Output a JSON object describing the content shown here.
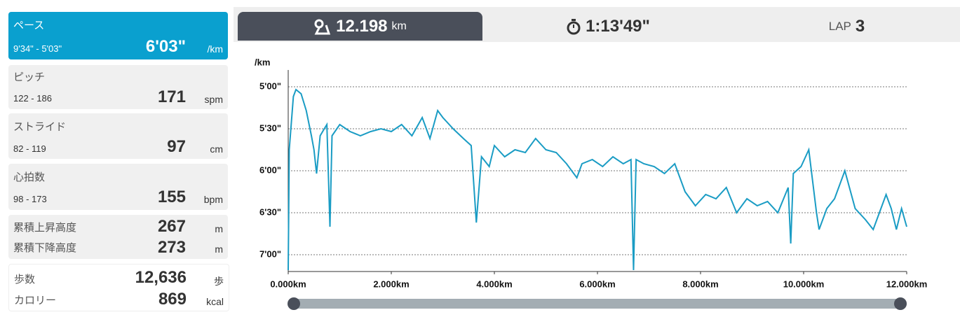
{
  "sidebar": [
    {
      "label": "ペース",
      "range": "9'34\" - 5'03\"",
      "value": "6'03\"",
      "unit": "/km"
    },
    {
      "label": "ピッチ",
      "range": "122 - 186",
      "value": "171",
      "unit": "spm"
    },
    {
      "label": "ストライド",
      "range": "82 - 119",
      "value": "97",
      "unit": "cm"
    },
    {
      "label": "心拍数",
      "range": "98 - 173",
      "value": "155",
      "unit": "bpm"
    }
  ],
  "elevation": [
    {
      "label": "累積上昇高度",
      "value": "267",
      "unit": "m"
    },
    {
      "label": "累積下降高度",
      "value": "273",
      "unit": "m"
    }
  ],
  "totals": [
    {
      "label": "歩数",
      "value": "12,636",
      "unit": "歩"
    },
    {
      "label": "カロリー",
      "value": "869",
      "unit": "kcal"
    }
  ],
  "tabs": {
    "distance": "12.198",
    "distance_unit": "km",
    "time": "1:13'49\"",
    "lap_label": "LAP",
    "lap": "3"
  },
  "chart_data": {
    "type": "line",
    "y_label": "/km",
    "x": [
      0,
      0.02,
      0.1,
      0.15,
      0.25,
      0.35,
      0.45,
      0.5,
      0.55,
      0.62,
      0.7,
      0.75,
      0.81,
      0.85,
      1.0,
      1.2,
      1.4,
      1.6,
      1.8,
      2.0,
      2.2,
      2.4,
      2.6,
      2.75,
      2.9,
      3.0,
      3.2,
      3.4,
      3.55,
      3.65,
      3.75,
      3.9,
      4.0,
      4.2,
      4.4,
      4.6,
      4.8,
      5.0,
      5.2,
      5.4,
      5.6,
      5.7,
      5.9,
      6.1,
      6.3,
      6.5,
      6.65,
      6.7,
      6.75,
      6.9,
      7.1,
      7.3,
      7.5,
      7.7,
      7.9,
      8.1,
      8.3,
      8.5,
      8.7,
      8.9,
      9.1,
      9.3,
      9.5,
      9.7,
      9.75,
      9.8,
      9.95,
      10.1,
      10.25,
      10.3,
      10.45,
      10.6,
      10.8,
      11.0,
      11.2,
      11.35,
      11.5,
      11.6,
      11.7,
      11.8,
      11.9,
      12.0
    ],
    "series": [
      {
        "name": "ペース",
        "color": "#1a9cc4",
        "values": [
          431,
          345,
          307,
          302,
          305,
          317,
          335,
          345,
          362,
          335,
          330,
          327,
          400,
          335,
          327,
          332,
          335,
          332,
          330,
          332,
          327,
          335,
          322,
          337,
          317,
          322,
          330,
          337,
          342,
          397,
          350,
          357,
          342,
          350,
          345,
          347,
          337,
          345,
          347,
          355,
          365,
          355,
          352,
          357,
          350,
          355,
          352,
          431,
          352,
          355,
          357,
          362,
          355,
          375,
          385,
          377,
          380,
          372,
          390,
          380,
          385,
          382,
          390,
          372,
          412,
          362,
          357,
          345,
          390,
          402,
          387,
          380,
          360,
          387,
          395,
          402,
          387,
          377,
          387,
          402,
          387,
          400
        ]
      }
    ],
    "xlim": [
      0,
      12
    ],
    "xticks": [
      {
        "value": 0,
        "label": "0.000km"
      },
      {
        "value": 2,
        "label": "2.000km"
      },
      {
        "value": 4,
        "label": "4.000km"
      },
      {
        "value": 6,
        "label": "6.000km"
      },
      {
        "value": 8,
        "label": "8.000km"
      },
      {
        "value": 10,
        "label": "10.000km"
      },
      {
        "value": 12,
        "label": "12.000km"
      }
    ],
    "ylim": [
      432,
      288
    ],
    "yticks": [
      {
        "value": 300,
        "label": "5'00\""
      },
      {
        "value": 330,
        "label": "5'30\""
      },
      {
        "value": 360,
        "label": "6'00\""
      },
      {
        "value": 390,
        "label": "6'30\""
      },
      {
        "value": 420,
        "label": "7'00\""
      }
    ],
    "grid": true
  }
}
